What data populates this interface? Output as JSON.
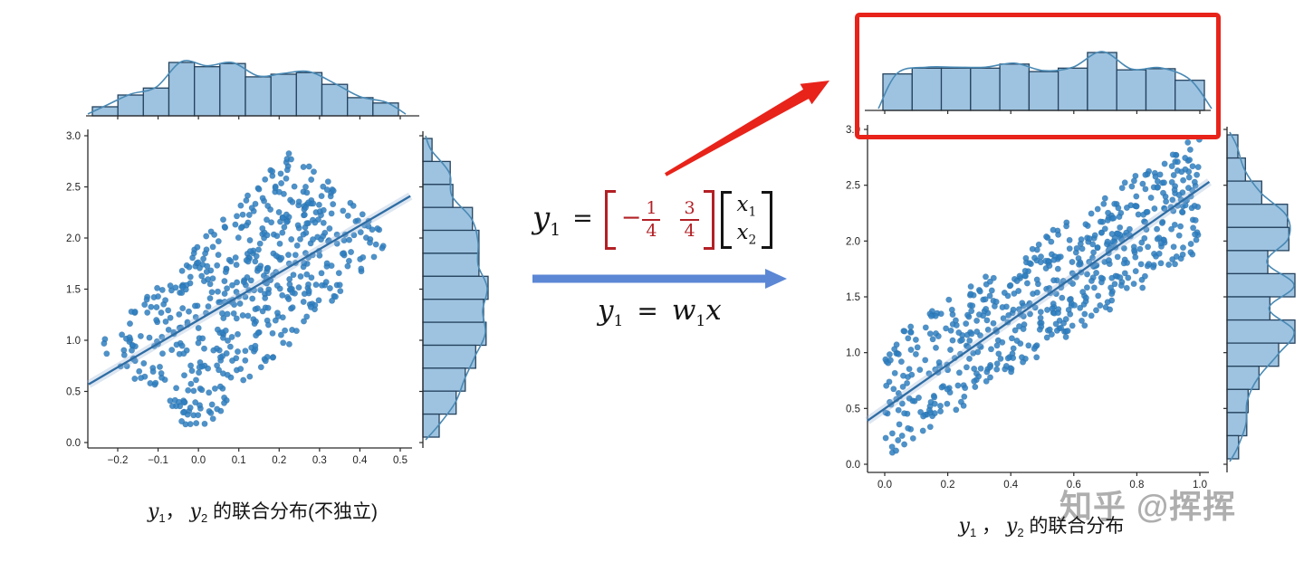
{
  "watermark": {
    "text": "知乎 @挥挥"
  },
  "colors": {
    "scatter": "#2f7fc1",
    "scatter_edge": "#1f5f8f",
    "hist_fill": "#9ec3e0",
    "hist_edge": "#24425e",
    "kde_line": "#4a8ab5",
    "reg_line": "#2e6da4",
    "reg_band": "#9db8d8",
    "axis": "#2b2b2b",
    "tick_text": "#222222",
    "red": "#e8231a",
    "dark_red": "#b32025",
    "blue_arrow": "#5b87d5"
  },
  "captions": {
    "left": {
      "v1": "y",
      "s1": "1",
      "mid": "， ",
      "v2": "y",
      "s2": "2",
      "rest": " 的联合分布(不独立)"
    },
    "right": {
      "v1": "y",
      "s1": "1",
      "mid": " ， ",
      "v2": "y",
      "s2": "2",
      "rest": " 的联合分布"
    }
  },
  "formulas": {
    "matrix_eq": {
      "lhs_var": "y",
      "lhs_sub": "1",
      "equals": "=",
      "minus": "−",
      "m11_num": "1",
      "m11_den": "4",
      "m12_num": "3",
      "m12_den": "4",
      "vec_var1": "x",
      "vec_sub1": "1",
      "vec_var2": "x",
      "vec_sub2": "2"
    },
    "compact_eq": {
      "lhs_var": "y",
      "lhs_sub": "1",
      "equals": "=",
      "rhs_var": "w",
      "rhs_sub": "1",
      "rhs_var2": "x"
    }
  },
  "chart_data": [
    {
      "id": "left",
      "type": "scatter",
      "title": "y1， y2 的联合分布(不独立)",
      "xlabel": "",
      "ylabel": "",
      "grid": false,
      "legend": false,
      "xlim": [
        -0.272,
        0.525
      ],
      "ylim": [
        -0.05,
        3.06
      ],
      "x_tick_values": [
        -0.2,
        -0.1,
        0.0,
        0.1,
        0.2,
        0.3,
        0.4,
        0.5
      ],
      "x_tick_labels": [
        "−0.2",
        "−0.1",
        "0.0",
        "0.1",
        "0.2",
        "0.3",
        "0.4",
        "0.5"
      ],
      "y_tick_values": [
        3.0,
        2.5,
        2.0,
        1.5,
        1.0,
        0.5,
        0.0
      ],
      "y_tick_labels": [
        "3.0",
        "2.5",
        "2.0",
        "1.5",
        "1.0",
        "0.5",
        "0.0"
      ],
      "scatter": {
        "n": 550,
        "seed": 42,
        "model": "parallelogram",
        "origin": [
          0.0,
          0.05
        ],
        "edge_a": [
          -0.25,
          0.9
        ],
        "edge_b": [
          0.48,
          1.93
        ]
      },
      "regression": {
        "x1": -0.272,
        "y1": 0.57,
        "x2": 0.525,
        "y2": 2.41
      },
      "top_hist": {
        "rel_heights": [
          0.17,
          0.39,
          0.52,
          1.0,
          0.92,
          0.98,
          0.73,
          0.78,
          0.81,
          0.59,
          0.34,
          0.24
        ]
      },
      "right_hist": {
        "rel_widths_top_to_bottom": [
          0.14,
          0.42,
          0.46,
          0.76,
          0.86,
          0.86,
          1.0,
          0.93,
          0.97,
          0.81,
          0.65,
          0.51,
          0.25
        ]
      }
    },
    {
      "id": "right",
      "type": "scatter",
      "title": "y1 ， y2 的联合分布",
      "xlabel": "",
      "ylabel": "",
      "grid": false,
      "legend": false,
      "xlim": [
        -0.055,
        1.03
      ],
      "ylim": [
        -0.07,
        3.04
      ],
      "x_tick_values": [
        0.0,
        0.2,
        0.4,
        0.6,
        0.8,
        1.0
      ],
      "x_tick_labels": [
        "0.0",
        "0.2",
        "0.4",
        "0.6",
        "0.8",
        "1.0"
      ],
      "y_tick_values": [
        3.0,
        2.5,
        2.0,
        1.5,
        1.0,
        0.5,
        0.0
      ],
      "y_tick_labels": [
        "3.0",
        "2.5",
        "2.0",
        "1.5",
        "1.0",
        "0.5",
        "0.0"
      ],
      "scatter": {
        "n": 600,
        "seed": 7,
        "model": "parallelogram",
        "origin": [
          0.0,
          0.05
        ],
        "edge_a": [
          0.0,
          1.05
        ],
        "edge_b": [
          1.0,
          1.87
        ]
      },
      "regression": {
        "x1": -0.055,
        "y1": 0.39,
        "x2": 1.03,
        "y2": 2.53
      },
      "top_hist": {
        "rel_heights": [
          0.63,
          0.73,
          0.73,
          0.73,
          0.8,
          0.67,
          0.73,
          1.0,
          0.7,
          0.72,
          0.52
        ]
      },
      "right_hist": {
        "rel_widths_top_to_bottom": [
          0.16,
          0.27,
          0.51,
          0.89,
          0.91,
          0.6,
          1.0,
          0.63,
          1.0,
          0.76,
          0.47,
          0.31,
          0.29,
          0.17
        ]
      }
    }
  ]
}
